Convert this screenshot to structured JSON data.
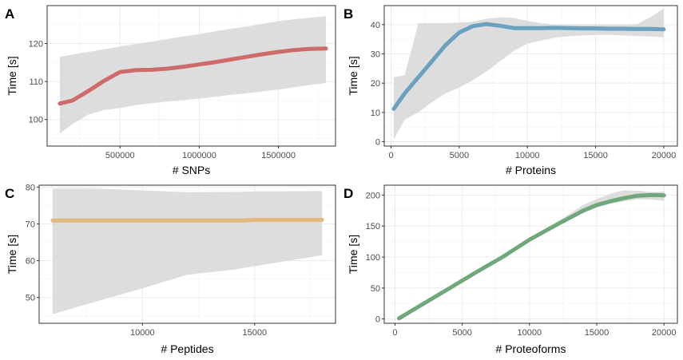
{
  "chart_data": [
    {
      "panel": "A",
      "type": "line",
      "xlabel": "# SNPs",
      "ylabel": "Time [s]",
      "xlim": [
        40000,
        1860000
      ],
      "ylim": [
        93,
        130
      ],
      "x_ticks": [
        500000,
        1000000,
        1500000
      ],
      "x_tick_labels": [
        "500000",
        "1000000",
        "1500000"
      ],
      "y_ticks": [
        100,
        110,
        120
      ],
      "y_tick_labels": [
        "100",
        "110",
        "120"
      ],
      "color": "#cd6a6a",
      "grid": true,
      "series": [
        {
          "x": [
            120000,
            200000,
            300000,
            400000,
            500000,
            600000,
            700000,
            800000,
            900000,
            1000000,
            1100000,
            1200000,
            1300000,
            1400000,
            1500000,
            1600000,
            1700000,
            1800000
          ],
          "y": [
            104.2,
            105,
            107.5,
            110.2,
            112.5,
            113,
            113.1,
            113.4,
            113.9,
            114.5,
            115.1,
            115.8,
            116.5,
            117.2,
            117.8,
            118.3,
            118.6,
            118.7
          ],
          "lower": [
            96.3,
            98.8,
            101.3,
            102.5,
            103,
            103.8,
            104.3,
            104.7,
            105.1,
            105.5,
            106,
            106.5,
            106.9,
            107.4,
            107.9,
            108.5,
            109.1,
            109.6
          ],
          "upper": [
            116.5,
            117.1,
            117.8,
            118.5,
            119.2,
            119.9,
            120.5,
            121.2,
            121.9,
            122.5,
            123.2,
            123.9,
            124.5,
            125.2,
            125.9,
            126.4,
            126.8,
            127.2
          ]
        }
      ]
    },
    {
      "panel": "B",
      "type": "line",
      "xlabel": "# Proteins",
      "ylabel": "Time [s]",
      "xlim": [
        -500,
        21000
      ],
      "ylim": [
        -1.5,
        46.5
      ],
      "x_ticks": [
        0,
        5000,
        10000,
        15000,
        20000
      ],
      "x_tick_labels": [
        "0",
        "5000",
        "10000",
        "15000",
        "20000"
      ],
      "y_ticks": [
        0,
        10,
        20,
        30,
        40
      ],
      "y_tick_labels": [
        "0",
        "10",
        "20",
        "30",
        "40"
      ],
      "color": "#6aa0c0",
      "grid": true,
      "series": [
        {
          "x": [
            200,
            1000,
            2000,
            3000,
            4000,
            5000,
            6000,
            7000,
            8000,
            9000,
            10000,
            11000,
            12000,
            13000,
            14000,
            15000,
            16000,
            17000,
            18000,
            19000,
            20000
          ],
          "y": [
            11.2,
            16.5,
            22,
            27.5,
            33,
            37.3,
            39.5,
            40.2,
            39.6,
            38.8,
            38.8,
            38.8,
            38.9,
            38.8,
            38.7,
            38.7,
            38.6,
            38.6,
            38.5,
            38.5,
            38.4
          ],
          "lower": [
            0.8,
            7.5,
            10,
            13.5,
            16.5,
            18.5,
            21,
            24,
            27.5,
            31,
            33.5,
            34.5,
            35.5,
            36,
            36.3,
            36.5,
            36.5,
            36.3,
            36.1,
            35.9,
            35.7
          ],
          "upper": [
            22,
            22.7,
            40.5,
            40.5,
            40.5,
            40.7,
            41,
            42,
            42.5,
            42.3,
            41.3,
            40.5,
            40,
            40,
            40,
            40,
            40,
            40,
            40,
            42.5,
            45.5
          ]
        }
      ]
    },
    {
      "panel": "C",
      "type": "line",
      "xlabel": "# Peptides",
      "ylabel": "Time [s]",
      "xlim": [
        5400,
        18600
      ],
      "ylim": [
        43,
        80.5
      ],
      "x_ticks": [
        10000,
        15000
      ],
      "x_tick_labels": [
        "10000",
        "15000"
      ],
      "y_ticks": [
        50,
        60,
        70,
        80
      ],
      "y_tick_labels": [
        "50",
        "60",
        "70",
        "80"
      ],
      "color": "#e2b77f",
      "grid": true,
      "series": [
        {
          "x": [
            6000,
            8000,
            10000,
            12000,
            14000,
            14500,
            15000,
            16000,
            18000
          ],
          "y": [
            70.9,
            70.9,
            70.9,
            70.9,
            70.9,
            70.9,
            71.1,
            71.1,
            71.1
          ],
          "lower": [
            45.5,
            49,
            52.5,
            56.2,
            57.5,
            58,
            58.5,
            59.5,
            61.5
          ],
          "upper": [
            79.6,
            79.6,
            79.1,
            78.6,
            78.7,
            78.7,
            78.8,
            78.8,
            78.9
          ]
        }
      ]
    },
    {
      "panel": "D",
      "type": "line",
      "xlabel": "# Proteoforms",
      "ylabel": "Time [s]",
      "xlim": [
        -800,
        21000
      ],
      "ylim": [
        -7,
        216
      ],
      "x_ticks": [
        0,
        5000,
        10000,
        15000,
        20000
      ],
      "x_tick_labels": [
        "0",
        "5000",
        "10000",
        "15000",
        "20000"
      ],
      "y_ticks": [
        0,
        50,
        100,
        150,
        200
      ],
      "y_tick_labels": [
        "0",
        "50",
        "100",
        "150",
        "200"
      ],
      "color": "#6fa87a",
      "grid": true,
      "series": [
        {
          "x": [
            300,
            2000,
            4000,
            6000,
            8000,
            10000,
            12000,
            14000,
            15000,
            16000,
            17000,
            18000,
            19000,
            19500,
            20000
          ],
          "y": [
            1,
            23,
            49,
            75,
            100,
            128,
            152,
            175,
            184,
            190,
            195,
            199,
            200,
            200,
            199.5
          ],
          "lower": [
            -2,
            20,
            46,
            72,
            97,
            125,
            149,
            171,
            180,
            186,
            190,
            193,
            193,
            192,
            191
          ],
          "upper": [
            4,
            26,
            52,
            78,
            103,
            131,
            156,
            184,
            194,
            202,
            208,
            207,
            205,
            205,
            206
          ]
        }
      ]
    }
  ],
  "panels": [
    {
      "letter": "A"
    },
    {
      "letter": "B"
    },
    {
      "letter": "C"
    },
    {
      "letter": "D"
    }
  ]
}
